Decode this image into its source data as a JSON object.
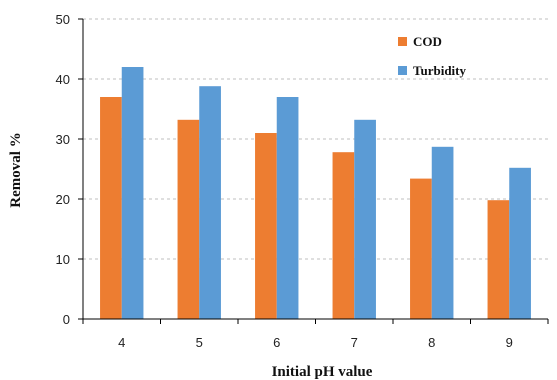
{
  "chart_data": {
    "type": "bar",
    "title": "",
    "xlabel": "Initial pH value",
    "ylabel": "Removal %",
    "categories": [
      "4",
      "5",
      "6",
      "7",
      "8",
      "9"
    ],
    "series": [
      {
        "name": "COD",
        "values": [
          37.0,
          33.2,
          31.0,
          27.8,
          23.4,
          19.8
        ],
        "color": "#ED7D31"
      },
      {
        "name": "Turbidity",
        "values": [
          42.0,
          38.8,
          37.0,
          33.2,
          28.7,
          25.2
        ],
        "color": "#5B9BD5"
      }
    ],
    "ylim": [
      0,
      50
    ],
    "yticks": [
      "0",
      "10",
      "20",
      "30",
      "40",
      "50"
    ],
    "grid": true,
    "legend_position": "top-right"
  }
}
